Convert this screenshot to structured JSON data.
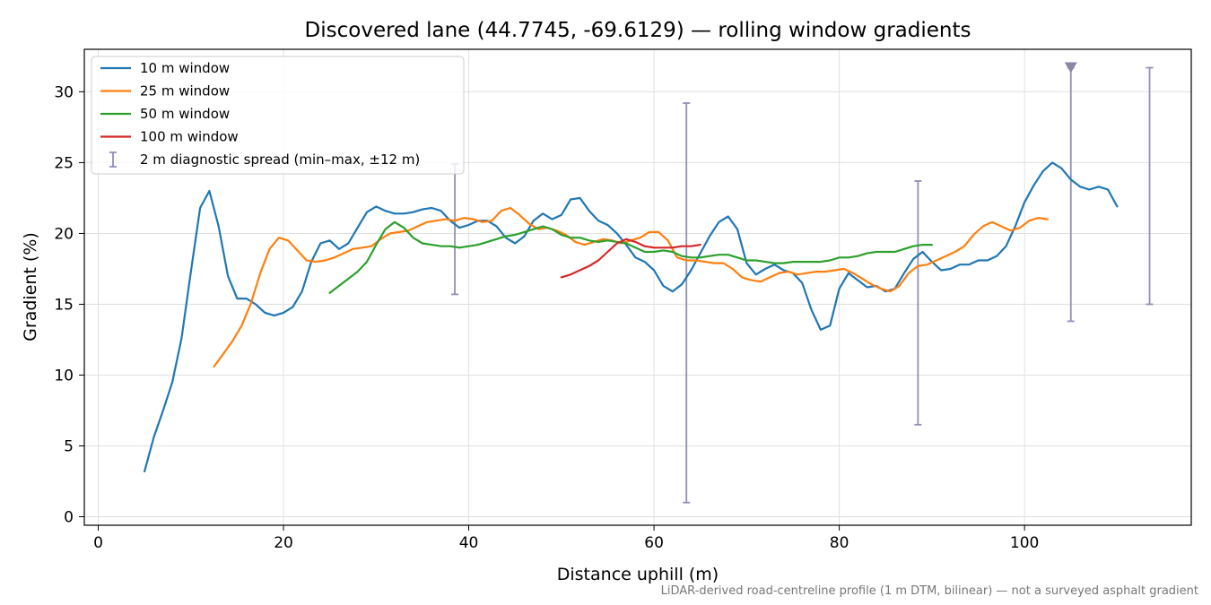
{
  "chart_data": {
    "type": "line",
    "title": "Discovered lane (44.7745, -69.6129) — rolling window gradients",
    "xlabel": "Distance uphill (m)",
    "ylabel": "Gradient (%)",
    "xlim": [
      -1.5,
      118
    ],
    "ylim": [
      -0.6,
      33
    ],
    "xticks": [
      0,
      20,
      40,
      60,
      80,
      100
    ],
    "yticks": [
      0,
      5,
      10,
      15,
      20,
      25,
      30
    ],
    "grid": true,
    "legend_position": "top-left",
    "series": [
      {
        "name": "10 m window",
        "color": "#1f77b4",
        "x": [
          5,
          6,
          7,
          8,
          9,
          10,
          11,
          12,
          13,
          14,
          15,
          16,
          17,
          18,
          19,
          20,
          21,
          22,
          23,
          24,
          25,
          26,
          27,
          28,
          29,
          30,
          31,
          32,
          33,
          34,
          35,
          36,
          37,
          38,
          39,
          40,
          41,
          42,
          43,
          44,
          45,
          46,
          47,
          48,
          49,
          50,
          51,
          52,
          53,
          54,
          55,
          56,
          57,
          58,
          59,
          60,
          61,
          62,
          63,
          64,
          65,
          66,
          67,
          68,
          69,
          70,
          71,
          72,
          73,
          74,
          75,
          76,
          77,
          78,
          79,
          80,
          81,
          82,
          83,
          84,
          85,
          86,
          87,
          88,
          89,
          90,
          91,
          92,
          93,
          94,
          95,
          96,
          97,
          98,
          99,
          100,
          101,
          102,
          103,
          104,
          105,
          106,
          107,
          108,
          109,
          110
        ],
        "y": [
          3.2,
          5.6,
          7.5,
          9.5,
          12.6,
          17.3,
          21.8,
          23.0,
          20.5,
          17.0,
          15.4,
          15.4,
          15.0,
          14.4,
          14.2,
          14.4,
          14.8,
          15.9,
          18.0,
          19.3,
          19.5,
          18.9,
          19.3,
          20.4,
          21.5,
          21.9,
          21.6,
          21.4,
          21.4,
          21.5,
          21.7,
          21.8,
          21.6,
          20.9,
          20.4,
          20.6,
          20.9,
          20.9,
          20.5,
          19.7,
          19.3,
          19.8,
          20.9,
          21.4,
          21.0,
          21.3,
          22.4,
          22.5,
          21.6,
          20.9,
          20.6,
          20.0,
          19.2,
          18.3,
          18.0,
          17.4,
          16.3,
          15.9,
          16.4,
          17.4,
          18.6,
          19.8,
          20.8,
          21.2,
          20.3,
          17.9,
          17.1,
          17.5,
          17.8,
          17.4,
          17.2,
          16.5,
          14.6,
          13.2,
          13.5,
          16.1,
          17.2,
          16.7,
          16.2,
          16.3,
          15.9,
          16.1,
          17.2,
          18.2,
          18.7,
          18.0,
          17.4,
          17.5,
          17.8,
          17.8,
          18.1,
          18.1,
          18.4,
          19.1,
          20.5,
          22.2,
          23.4,
          24.4,
          25.0,
          24.6,
          23.8,
          23.3,
          23.1,
          23.3,
          23.1,
          21.9
        ]
      },
      {
        "name": "25 m window",
        "color": "#ff7f0e",
        "x": [
          12.5,
          13.5,
          14.5,
          15.5,
          16.5,
          17.5,
          18.5,
          19.5,
          20.5,
          21.5,
          22.5,
          23.5,
          24.5,
          25.5,
          26.5,
          27.5,
          28.5,
          29.5,
          30.5,
          31.5,
          32.5,
          33.5,
          34.5,
          35.5,
          36.5,
          37.5,
          38.5,
          39.5,
          40.5,
          41.5,
          42.5,
          43.5,
          44.5,
          45.5,
          46.5,
          47.5,
          48.5,
          49.5,
          50.5,
          51.5,
          52.5,
          53.5,
          54.5,
          55.5,
          56.5,
          57.5,
          58.5,
          59.5,
          60.5,
          61.5,
          62.5,
          63.5,
          64.5,
          65.5,
          66.5,
          67.5,
          68.5,
          69.5,
          70.5,
          71.5,
          72.5,
          73.5,
          74.5,
          75.5,
          76.5,
          77.5,
          78.5,
          79.5,
          80.5,
          81.5,
          82.5,
          83.5,
          84.5,
          85.5,
          86.5,
          87.5,
          88.5,
          89.5,
          90.5,
          91.5,
          92.5,
          93.5,
          94.5,
          95.5,
          96.5,
          97.5,
          98.5,
          99.5,
          100.5,
          101.5,
          102.5
        ],
        "y": [
          10.6,
          11.5,
          12.4,
          13.5,
          15.1,
          17.2,
          18.9,
          19.7,
          19.5,
          18.8,
          18.1,
          18.0,
          18.1,
          18.3,
          18.6,
          18.9,
          19.0,
          19.1,
          19.6,
          20.0,
          20.1,
          20.2,
          20.5,
          20.8,
          20.9,
          21.0,
          20.9,
          21.1,
          21.0,
          20.8,
          20.9,
          21.6,
          21.8,
          21.3,
          20.7,
          20.3,
          20.4,
          20.2,
          19.9,
          19.4,
          19.2,
          19.4,
          19.6,
          19.5,
          19.3,
          19.5,
          19.7,
          20.1,
          20.1,
          19.5,
          18.3,
          18.1,
          18.1,
          18.0,
          17.9,
          17.9,
          17.5,
          16.9,
          16.7,
          16.6,
          16.9,
          17.2,
          17.3,
          17.1,
          17.2,
          17.3,
          17.3,
          17.4,
          17.5,
          17.2,
          16.8,
          16.4,
          16.1,
          15.9,
          16.3,
          17.2,
          17.7,
          17.8,
          18.1,
          18.4,
          18.7,
          19.1,
          19.9,
          20.5,
          20.8,
          20.5,
          20.2,
          20.4,
          20.9,
          21.1,
          21.0
        ]
      },
      {
        "name": "50 m window",
        "color": "#2ca02c",
        "x": [
          25,
          26,
          27,
          28,
          29,
          30,
          31,
          32,
          33,
          34,
          35,
          36,
          37,
          38,
          39,
          40,
          41,
          42,
          43,
          44,
          45,
          46,
          47,
          48,
          49,
          50,
          51,
          52,
          53,
          54,
          55,
          56,
          57,
          58,
          59,
          60,
          61,
          62,
          63,
          64,
          65,
          66,
          67,
          68,
          69,
          70,
          71,
          72,
          73,
          74,
          75,
          76,
          77,
          78,
          79,
          80,
          81,
          82,
          83,
          84,
          85,
          86,
          87,
          88,
          89,
          90
        ],
        "y": [
          15.8,
          16.3,
          16.8,
          17.3,
          18.0,
          19.2,
          20.3,
          20.8,
          20.4,
          19.7,
          19.3,
          19.2,
          19.1,
          19.1,
          19.0,
          19.1,
          19.2,
          19.4,
          19.6,
          19.8,
          19.9,
          20.1,
          20.3,
          20.5,
          20.3,
          19.9,
          19.7,
          19.7,
          19.5,
          19.4,
          19.5,
          19.4,
          19.3,
          19.0,
          18.7,
          18.7,
          18.8,
          18.7,
          18.4,
          18.3,
          18.3,
          18.4,
          18.5,
          18.5,
          18.3,
          18.1,
          18.1,
          18.0,
          17.9,
          17.9,
          18.0,
          18.0,
          18.0,
          18.0,
          18.1,
          18.3,
          18.3,
          18.4,
          18.6,
          18.7,
          18.7,
          18.7,
          18.9,
          19.1,
          19.2,
          19.2
        ]
      },
      {
        "name": "100 m window",
        "color": "#d62728",
        "x": [
          50,
          51,
          52,
          53,
          54,
          55,
          56,
          57,
          58,
          59,
          60,
          61,
          62,
          63,
          64,
          65
        ],
        "y": [
          16.9,
          17.1,
          17.4,
          17.7,
          18.1,
          18.7,
          19.3,
          19.6,
          19.4,
          19.1,
          19.0,
          19.0,
          19.0,
          19.1,
          19.1,
          19.2
        ]
      }
    ],
    "errorbars": {
      "name": "2 m diagnostic spread (min–max, ±12 m)",
      "color": "#9090b8",
      "items": [
        {
          "x": 38.5,
          "min": 15.7,
          "max": 24.9
        },
        {
          "x": 63.5,
          "min": 1.0,
          "max": 29.2
        },
        {
          "x": 88.5,
          "min": 6.5,
          "max": 23.7
        },
        {
          "x": 105,
          "min": 13.8,
          "max": 31.7,
          "clipped_marker": true
        },
        {
          "x": 113.5,
          "min": 15.0,
          "max": 31.7
        }
      ]
    },
    "footnote": "LiDAR-derived road-centreline profile (1 m DTM, bilinear) — not a surveyed asphalt gradient"
  }
}
